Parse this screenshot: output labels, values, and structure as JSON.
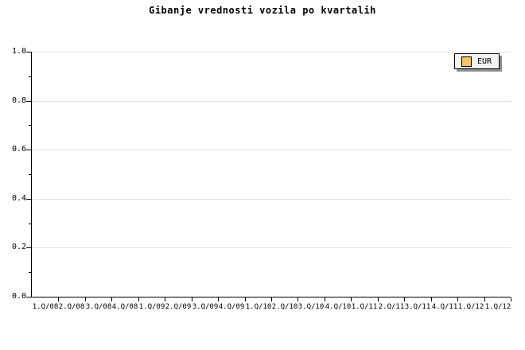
{
  "title": "Gibanje vrednosti vozila po kvartalih",
  "legend": {
    "items": [
      {
        "label": "EUR",
        "swatch_color": "#FAC364"
      }
    ]
  },
  "colors": {
    "background": "#FFFFFF",
    "axis": "#000000",
    "grid": "#DFDFDF",
    "text": "#000000",
    "legend_background": "#F2F2F2",
    "legend_border": "#000000",
    "legend_shadow": "#8E8E8E"
  },
  "chart_data": {
    "type": "line",
    "title": "Gibanje vrednosti vozila po kvartalih",
    "xlabel": "",
    "ylabel": "",
    "x_tick_labels": [
      "1.Q/08",
      "2.Q/08",
      "3.Q/08",
      "4.Q/08",
      "1.Q/09",
      "2.Q/09",
      "3.Q/09",
      "4.Q/09",
      "1.Q/10",
      "2.Q/10",
      "3.Q/10",
      "4.Q/10",
      "1.Q/11",
      "2.Q/11",
      "3.Q/11",
      "4.Q/11",
      "1.Q/12",
      "1.Q/12"
    ],
    "y_tick_labels": [
      "0.0",
      "0.2",
      "0.4",
      "0.6",
      "0.8",
      "1.0"
    ],
    "ylim": [
      0,
      1
    ],
    "y_major_step": 0.2,
    "y_minor_step": 0.1,
    "grid": "horizontal gridlines at major y ticks only",
    "legend_position": "top-right inside plot",
    "legend_entries": [
      "EUR"
    ],
    "series": [
      {
        "name": "EUR",
        "values": []
      }
    ],
    "note": "plot area is empty - no data points are drawn"
  }
}
